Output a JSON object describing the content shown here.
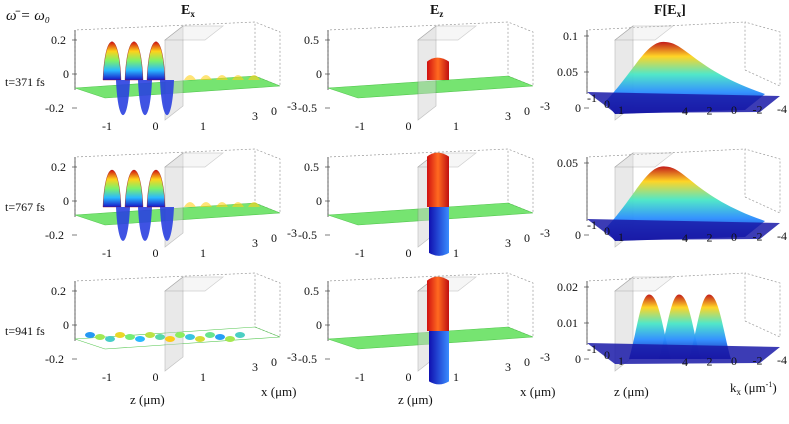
{
  "figure": {
    "header": "ω̄ = ω₀",
    "columns": [
      {
        "title_main": "E",
        "title_sub": "x"
      },
      {
        "title_main": "E",
        "title_sub": "z"
      },
      {
        "title_main": "F[E",
        "title_sub": "x",
        "title_tail": "]"
      }
    ],
    "rows": [
      {
        "time_label": "t=371 fs"
      },
      {
        "time_label": "t=767 fs"
      },
      {
        "time_label": "t=941 fs"
      }
    ],
    "xlabel_real_z": "z (μm)",
    "xlabel_real_x": "x (μm)",
    "xlabel_k_z": "z (μm)",
    "xlabel_k_x_main": "k",
    "xlabel_k_x_sub": "x",
    "xlabel_k_x_tail": " (μm",
    "xlabel_k_x_sup": "-1",
    "xlabel_k_x_end": ")"
  },
  "chart_data": [
    {
      "type": "surface",
      "panel": "Ex t=371 fs",
      "column": "Ex",
      "time_fs": 371,
      "zticks": [
        "-1",
        "0",
        "1"
      ],
      "xticks": [
        "3",
        "0",
        "-3"
      ],
      "vticks": [
        "0.2",
        "0",
        "-0.2"
      ],
      "vlim": [
        -0.3,
        0.3
      ],
      "peak": 0.29,
      "trough": -0.29,
      "n_visible_oscillations": 3
    },
    {
      "type": "surface",
      "panel": "Ez t=371 fs",
      "column": "Ez",
      "time_fs": 371,
      "zticks": [
        "-1",
        "0",
        "1"
      ],
      "xticks": [
        "3",
        "0",
        "-3"
      ],
      "vticks": [
        "0.5",
        "0",
        "-0.5"
      ],
      "vlim": [
        -0.6,
        0.6
      ],
      "peak": 0.2,
      "trough": -0.05
    },
    {
      "type": "surface",
      "panel": "F[Ex] t=371 fs",
      "column": "F[Ex]",
      "time_fs": 371,
      "zticks": [
        "-1",
        "0",
        "1"
      ],
      "xticks": [
        "4",
        "2",
        "0",
        "-2",
        "-4"
      ],
      "vticks": [
        "0.1",
        "0.05",
        "0"
      ],
      "vlim": [
        0,
        0.12
      ],
      "peak": 0.1,
      "n_peaks": 1
    },
    {
      "type": "surface",
      "panel": "Ex t=767 fs",
      "column": "Ex",
      "time_fs": 767,
      "zticks": [
        "-1",
        "0",
        "1"
      ],
      "xticks": [
        "3",
        "0",
        "-3"
      ],
      "vticks": [
        "0.2",
        "0",
        "-0.2"
      ],
      "vlim": [
        -0.3,
        0.3
      ],
      "peak": 0.28,
      "trough": -0.28,
      "n_visible_oscillations": 3
    },
    {
      "type": "surface",
      "panel": "Ez t=767 fs",
      "column": "Ez",
      "time_fs": 767,
      "zticks": [
        "-1",
        "0",
        "1"
      ],
      "xticks": [
        "3",
        "0",
        "-3"
      ],
      "vticks": [
        "0.5",
        "0",
        "-0.5"
      ],
      "vlim": [
        -0.6,
        0.6
      ],
      "peak": 0.55,
      "trough": -0.5
    },
    {
      "type": "surface",
      "panel": "F[Ex] t=767 fs",
      "column": "F[Ex]",
      "time_fs": 767,
      "zticks": [
        "-1",
        "0",
        "1"
      ],
      "xticks": [
        "4",
        "2",
        "0",
        "-2",
        "-4"
      ],
      "vticks": [
        "0.05",
        "0"
      ],
      "vlim": [
        0,
        0.08
      ],
      "peak": 0.07,
      "n_peaks": 1
    },
    {
      "type": "surface",
      "panel": "Ex t=941 fs",
      "column": "Ex",
      "time_fs": 941,
      "zticks": [
        "-1",
        "0",
        "1"
      ],
      "xticks": [
        "3",
        "0",
        "-3"
      ],
      "vticks": [
        "0.2",
        "0",
        "-0.2"
      ],
      "vlim": [
        -0.3,
        0.3
      ],
      "peak": 0.05,
      "trough": -0.05,
      "pattern": "flat interference pattern"
    },
    {
      "type": "surface",
      "panel": "Ez t=941 fs",
      "column": "Ez",
      "time_fs": 941,
      "zticks": [
        "-1",
        "0",
        "1"
      ],
      "xticks": [
        "3",
        "0",
        "-3"
      ],
      "vticks": [
        "0.5",
        "0",
        "-0.5"
      ],
      "vlim": [
        -0.6,
        0.6
      ],
      "peak": 0.55,
      "trough": -0.55
    },
    {
      "type": "surface",
      "panel": "F[Ex] t=941 fs",
      "column": "F[Ex]",
      "time_fs": 941,
      "zticks": [
        "-1",
        "0",
        "1"
      ],
      "xticks": [
        "4",
        "2",
        "0",
        "-2",
        "-4"
      ],
      "vticks": [
        "0.02",
        "0.01",
        "0"
      ],
      "vlim": [
        0,
        0.022
      ],
      "peak": 0.02,
      "n_peaks": 3
    }
  ]
}
